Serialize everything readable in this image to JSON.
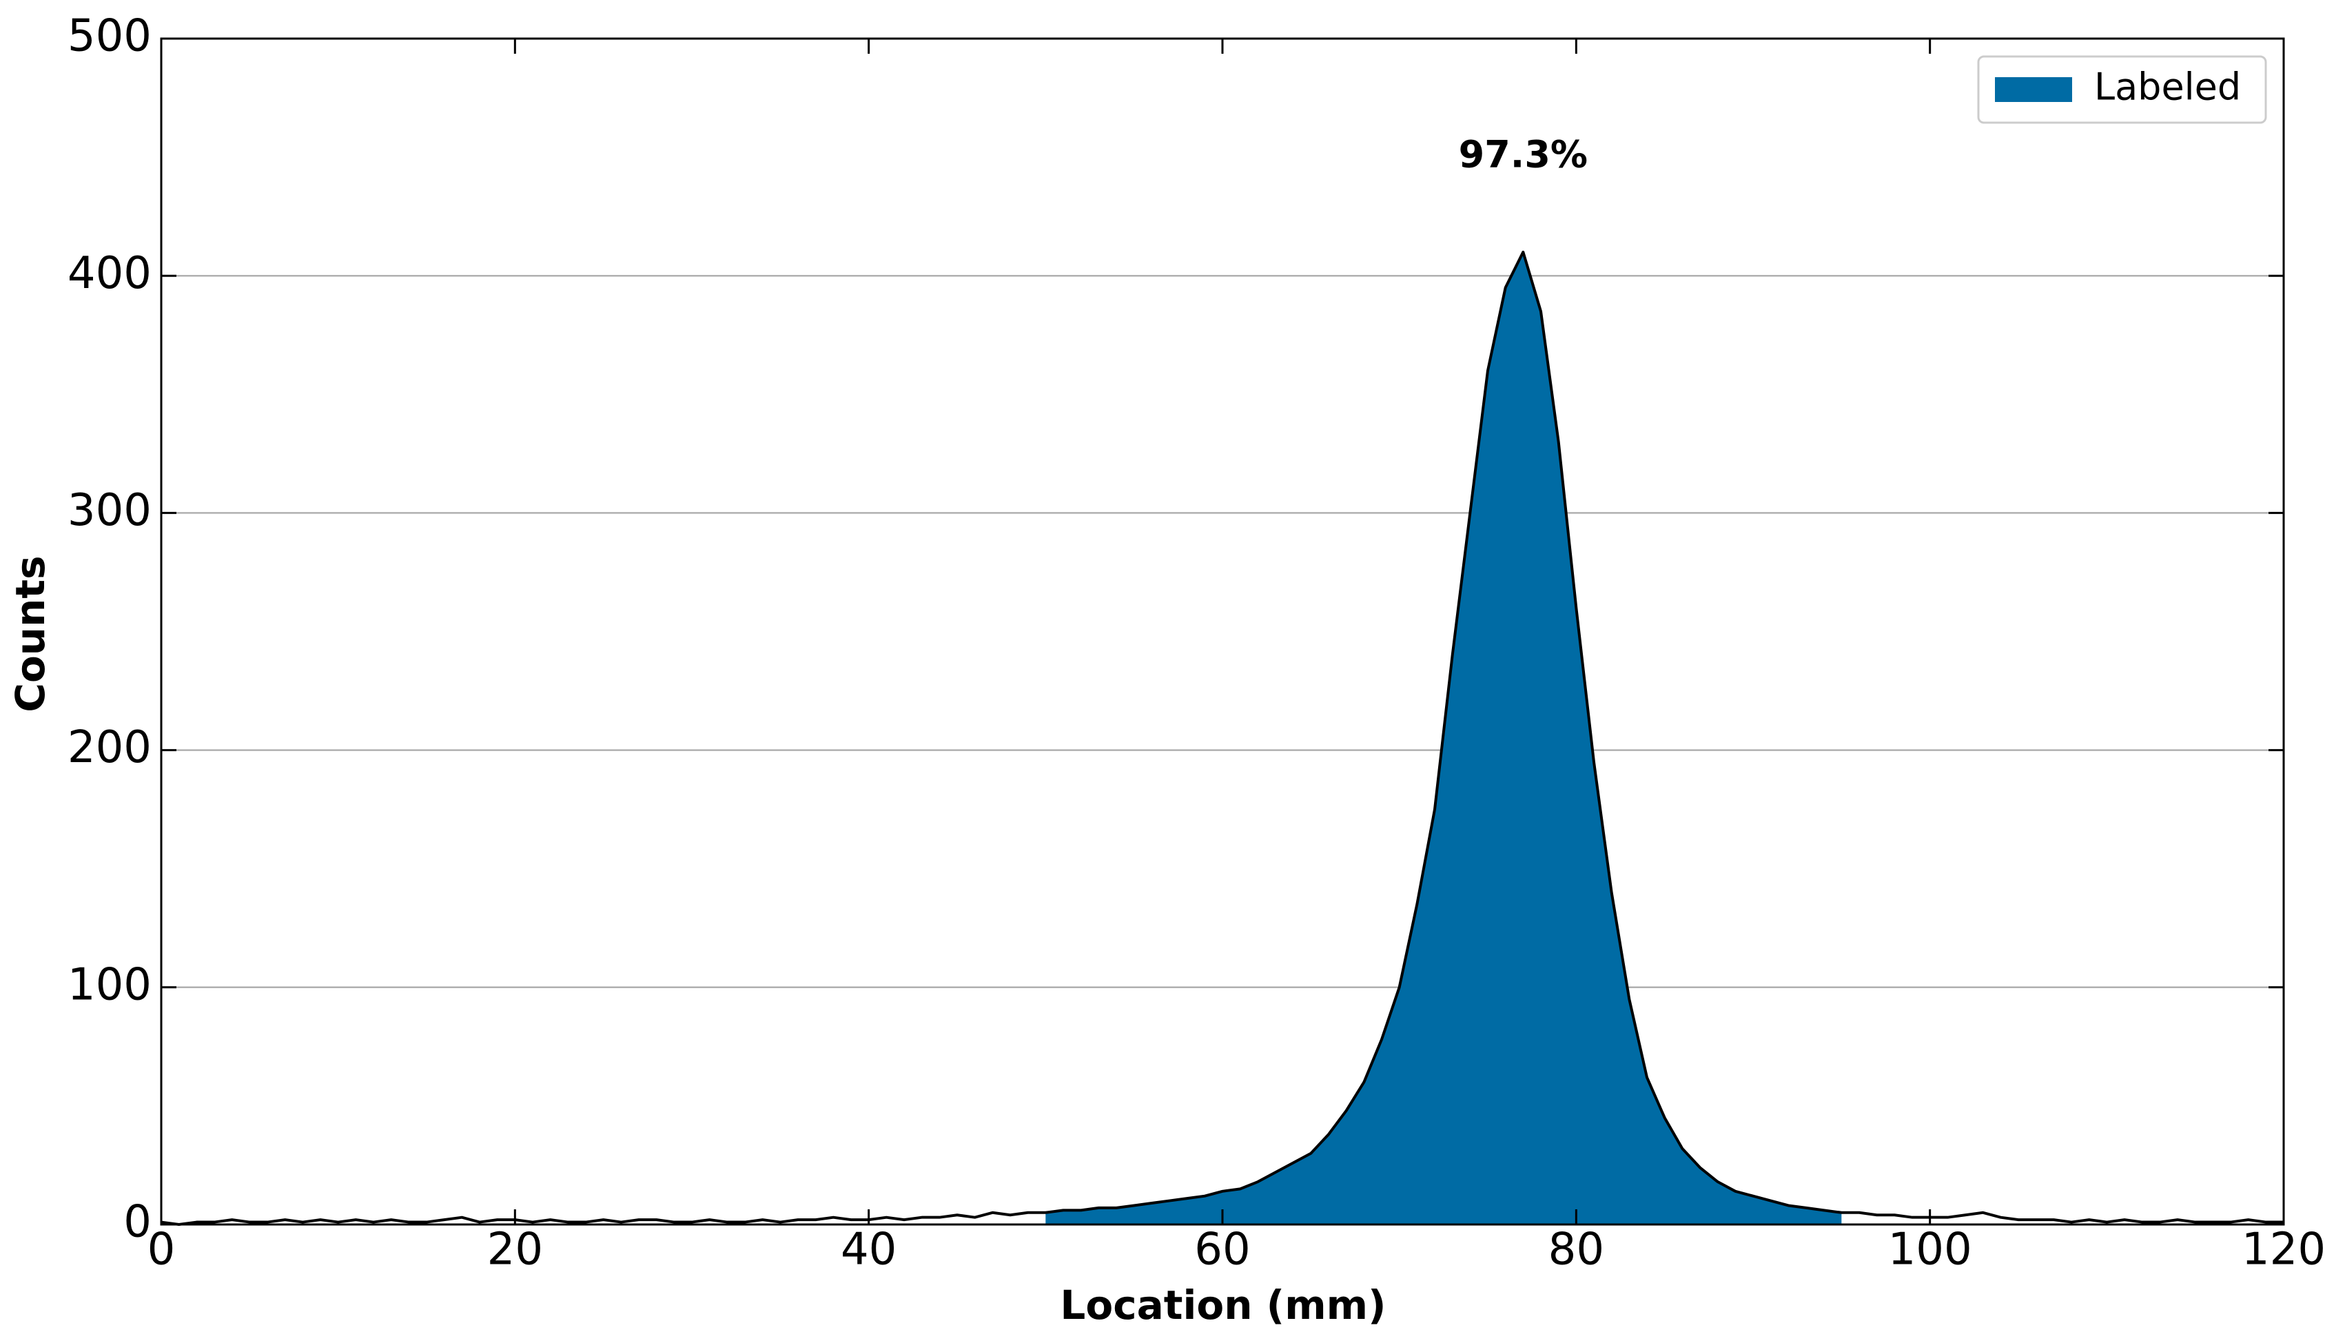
{
  "chart_data": {
    "type": "area",
    "xlabel": "Location (mm)",
    "ylabel": "Counts",
    "x": [
      0,
      1,
      2,
      3,
      4,
      5,
      6,
      7,
      8,
      9,
      10,
      11,
      12,
      13,
      14,
      15,
      16,
      17,
      18,
      19,
      20,
      21,
      22,
      23,
      24,
      25,
      26,
      27,
      28,
      29,
      30,
      31,
      32,
      33,
      34,
      35,
      36,
      37,
      38,
      39,
      40,
      41,
      42,
      43,
      44,
      45,
      46,
      47,
      48,
      49,
      50,
      51,
      52,
      53,
      54,
      55,
      56,
      57,
      58,
      59,
      60,
      61,
      62,
      63,
      64,
      65,
      66,
      67,
      68,
      69,
      70,
      71,
      72,
      73,
      74,
      75,
      76,
      77,
      78,
      79,
      80,
      81,
      82,
      83,
      84,
      85,
      86,
      87,
      88,
      89,
      90,
      91,
      92,
      93,
      94,
      95,
      96,
      97,
      98,
      99,
      100,
      101,
      102,
      103,
      104,
      105,
      106,
      107,
      108,
      109,
      110,
      111,
      112,
      113,
      114,
      115,
      116,
      117,
      118,
      119,
      120
    ],
    "series": [
      {
        "name": "Labeled",
        "color": "#006ba4",
        "values": [
          null,
          null,
          null,
          null,
          null,
          null,
          null,
          null,
          null,
          null,
          null,
          null,
          null,
          null,
          null,
          null,
          null,
          null,
          null,
          null,
          null,
          null,
          null,
          null,
          null,
          null,
          null,
          null,
          null,
          null,
          null,
          null,
          null,
          null,
          null,
          null,
          null,
          null,
          null,
          null,
          null,
          null,
          null,
          null,
          null,
          null,
          null,
          null,
          null,
          null,
          5,
          6,
          6,
          7,
          7,
          8,
          9,
          10,
          11,
          12,
          14,
          15,
          18,
          22,
          26,
          30,
          38,
          48,
          60,
          78,
          100,
          135,
          175,
          240,
          300,
          360,
          395,
          410,
          385,
          330,
          260,
          195,
          140,
          95,
          62,
          45,
          32,
          24,
          18,
          14,
          12,
          10,
          8,
          7,
          6,
          5,
          null,
          null,
          null,
          null,
          null,
          null,
          null,
          null,
          null,
          null,
          null,
          null,
          null,
          null,
          null,
          null,
          null,
          null,
          null,
          null,
          null,
          null,
          null,
          null,
          null
        ]
      },
      {
        "color": "#000000",
        "values": [
          1,
          0,
          1,
          1,
          2,
          1,
          1,
          2,
          1,
          2,
          1,
          2,
          1,
          2,
          1,
          1,
          2,
          3,
          1,
          2,
          2,
          1,
          2,
          1,
          1,
          2,
          1,
          2,
          2,
          1,
          1,
          2,
          1,
          1,
          2,
          1,
          2,
          2,
          3,
          2,
          2,
          3,
          2,
          3,
          3,
          4,
          3,
          5,
          4,
          5,
          5,
          6,
          6,
          7,
          7,
          8,
          9,
          10,
          11,
          12,
          14,
          15,
          18,
          22,
          26,
          30,
          38,
          48,
          60,
          78,
          100,
          135,
          175,
          240,
          300,
          360,
          395,
          410,
          385,
          330,
          260,
          195,
          140,
          95,
          62,
          45,
          32,
          24,
          18,
          14,
          12,
          10,
          8,
          7,
          6,
          5,
          5,
          4,
          4,
          3,
          3,
          3,
          4,
          5,
          3,
          2,
          2,
          2,
          1,
          2,
          1,
          2,
          1,
          1,
          2,
          1,
          1,
          1,
          2,
          1,
          1
        ]
      }
    ],
    "annotations": [
      {
        "text": "97.3%",
        "x": 77,
        "y": 450
      }
    ],
    "xlim": [
      0,
      120
    ],
    "xticks": [
      0,
      20,
      40,
      60,
      80,
      100,
      120
    ],
    "ylim": [
      0,
      500
    ],
    "yticks": [
      0,
      100,
      200,
      300,
      400,
      500
    ],
    "grid": "y",
    "legend": "upper right"
  }
}
